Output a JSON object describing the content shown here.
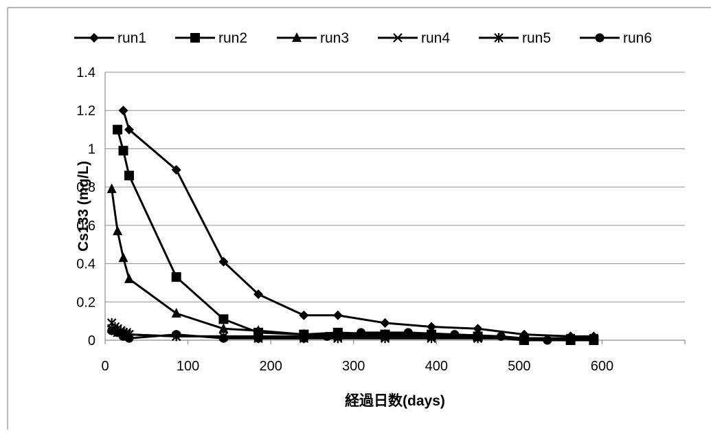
{
  "chart_data": {
    "type": "line",
    "title": "",
    "xlabel": "経過日数(days)",
    "ylabel": "Cs133 (mg/L)",
    "xlim": [
      0,
      700
    ],
    "ylim": [
      0,
      1.4
    ],
    "x_ticks": [
      "0",
      "100",
      "200",
      "300",
      "400",
      "500",
      "600"
    ],
    "y_ticks": [
      "0",
      "0.2",
      "0.4",
      "0.6",
      "0.8",
      "1",
      "1.2",
      "1.4"
    ],
    "grid": "horizontal",
    "legend_position": "top",
    "colors": {
      "series": "#000000",
      "grid": "#8c8c8c",
      "axis": "#8c8c8c"
    },
    "series": [
      {
        "name": "run1",
        "marker": "diamond",
        "x": [
          22,
          29,
          86,
          143,
          185,
          240,
          281,
          338,
          394,
          450,
          506,
          562,
          590
        ],
        "y": [
          1.2,
          1.1,
          0.89,
          0.41,
          0.24,
          0.13,
          0.13,
          0.09,
          0.07,
          0.06,
          0.03,
          0.02,
          0.02
        ]
      },
      {
        "name": "run2",
        "marker": "square",
        "x": [
          15,
          22,
          29,
          86,
          143,
          185,
          240,
          281,
          338,
          394,
          450,
          506,
          562,
          590
        ],
        "y": [
          1.1,
          0.99,
          0.86,
          0.33,
          0.11,
          0.04,
          0.03,
          0.04,
          0.03,
          0.03,
          0.02,
          0.0,
          0.0,
          0.0
        ]
      },
      {
        "name": "run3",
        "marker": "triangle",
        "x": [
          8,
          15,
          22,
          29,
          86,
          143,
          185,
          240,
          281,
          338,
          394,
          450,
          506,
          562,
          590
        ],
        "y": [
          0.79,
          0.57,
          0.43,
          0.32,
          0.14,
          0.06,
          0.05,
          0.03,
          0.03,
          0.03,
          0.03,
          0.02,
          0.01,
          0.01,
          0.01
        ]
      },
      {
        "name": "run4",
        "marker": "x",
        "x": [
          8,
          12,
          15,
          19,
          22,
          26,
          29,
          86,
          143,
          185,
          240,
          281,
          338,
          394,
          450,
          506,
          562,
          590
        ],
        "y": [
          0.06,
          0.05,
          0.04,
          0.04,
          0.03,
          0.03,
          0.03,
          0.02,
          0.02,
          0.02,
          0.02,
          0.02,
          0.02,
          0.02,
          0.01,
          0.01,
          0.01,
          0.01
        ]
      },
      {
        "name": "run5",
        "marker": "asterisk",
        "x": [
          8,
          12,
          15,
          19,
          22,
          26,
          29,
          86,
          143,
          185,
          240,
          281,
          338,
          394,
          450,
          506,
          562,
          590
        ],
        "y": [
          0.09,
          0.07,
          0.06,
          0.05,
          0.04,
          0.04,
          0.03,
          0.02,
          0.02,
          0.01,
          0.01,
          0.01,
          0.01,
          0.01,
          0.01,
          0.01,
          0.01,
          0.01
        ]
      },
      {
        "name": "run6",
        "marker": "circle",
        "x": [
          8,
          15,
          22,
          29,
          86,
          143,
          185,
          240,
          268,
          309,
          366,
          422,
          478,
          534,
          562
        ],
        "y": [
          0.05,
          0.04,
          0.02,
          0.01,
          0.03,
          0.01,
          0.01,
          0.01,
          0.02,
          0.04,
          0.04,
          0.03,
          0.02,
          0.0,
          0.0
        ]
      }
    ]
  }
}
